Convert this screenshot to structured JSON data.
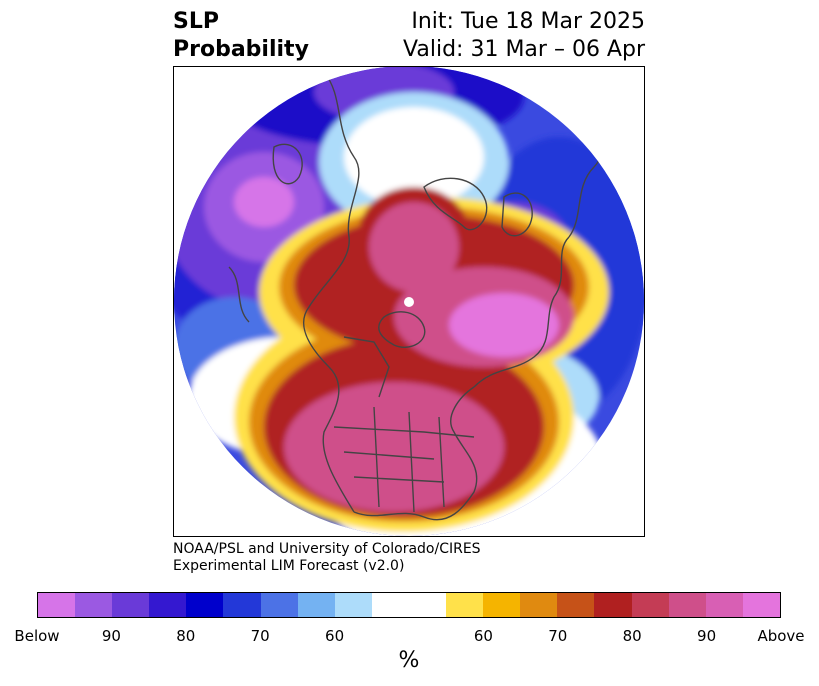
{
  "title": {
    "left_line1": "SLP",
    "left_line2": "Probability",
    "right_line1": "Init: Tue 18 Mar 2025",
    "right_line2": "Valid: 31 Mar – 06 Apr"
  },
  "credit": {
    "line1": "NOAA/PSL and University of Colorado/CIRES",
    "line2": "Experimental LIM Forecast (v2.0)"
  },
  "colorbar": {
    "colors": [
      "#d674e8",
      "#9b59e2",
      "#6a3ad8",
      "#3418d0",
      "#0000cc",
      "#2338d8",
      "#4c72e6",
      "#74b2f2",
      "#addcfa",
      "#ffffff",
      "#ffffff",
      "#ffe14a",
      "#f5b400",
      "#e08a10",
      "#c65218",
      "#b02020",
      "#c43c55",
      "#cf4f8a",
      "#d85fb4",
      "#e474dd"
    ],
    "ticks": [
      "Below",
      "90",
      "80",
      "70",
      "60",
      "60",
      "70",
      "80",
      "90",
      "Above"
    ],
    "unit": "%"
  }
}
